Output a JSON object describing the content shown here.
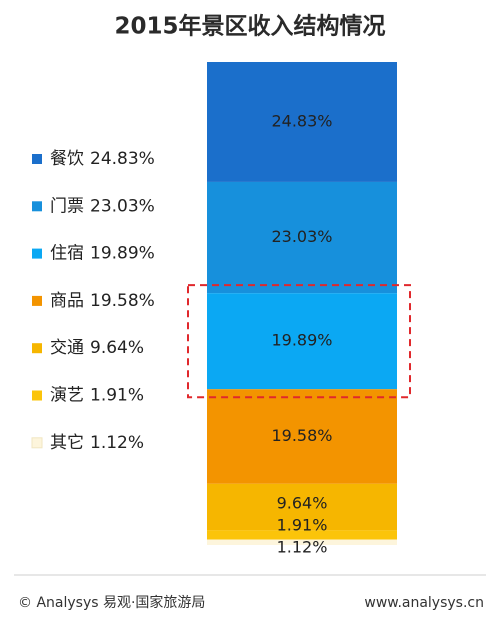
{
  "chart_data": {
    "type": "stacked-bar",
    "title": "2015年景区收入结构情况",
    "categories": [
      "餐饮",
      "门票",
      "住宿",
      "商品",
      "交通",
      "演艺",
      "其它"
    ],
    "values": [
      24.83,
      23.03,
      19.89,
      19.58,
      9.64,
      1.91,
      1.12
    ],
    "value_labels": [
      "24.83%",
      "23.03%",
      "19.89%",
      "19.58%",
      "9.64%",
      "1.91%",
      "1.12%"
    ],
    "colors": [
      "#1b6fcb",
      "#1790dc",
      "#0ba8f3",
      "#f39400",
      "#f6b600",
      "#fbc40a",
      "#fdf5dc"
    ],
    "ylim": [
      0,
      100
    ],
    "legend": "left"
  },
  "footer": {
    "source": "© Analysys 易观·国家旅游局",
    "site": "www.analysys.cn"
  }
}
